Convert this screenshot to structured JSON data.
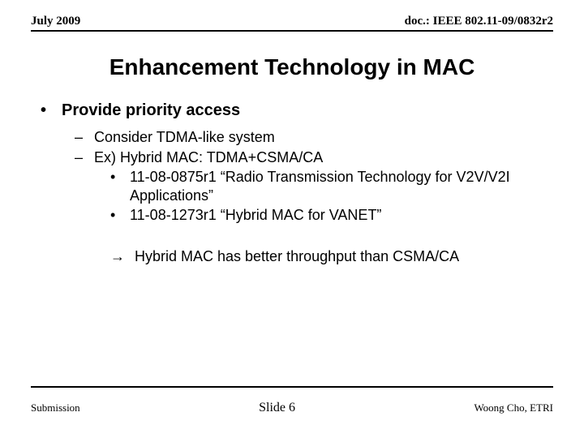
{
  "header": {
    "date": "July 2009",
    "doc": "doc.: IEEE 802.11-09/0832r2"
  },
  "title": "Enhancement Technology in MAC",
  "bullets": {
    "l1": "Provide priority access",
    "l2a": "Consider TDMA-like system",
    "l2b": "Ex) Hybrid MAC: TDMA+CSMA/CA",
    "l3a": "11-08-0875r1 “Radio Transmission Technology for V2V/V2I Applications”",
    "l3b": "11-08-1273r1 “Hybrid MAC for VANET”",
    "arrow": "Hybrid MAC has better throughput than CSMA/CA"
  },
  "footer": {
    "left": "Submission",
    "center": "Slide 6",
    "right": "Woong Cho, ETRI"
  },
  "colors": {
    "text": "#000000",
    "background": "#ffffff",
    "rule": "#000000"
  }
}
